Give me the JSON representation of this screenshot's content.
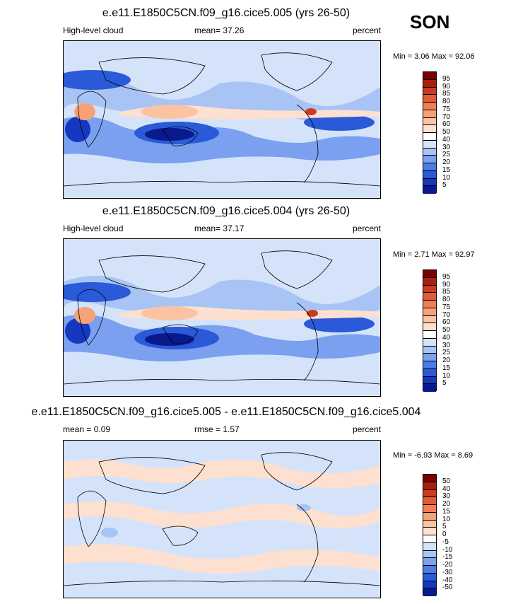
{
  "season": "SON",
  "colors": {
    "levels11": [
      "#0a1a8c",
      "#1538c0",
      "#2a5ad8",
      "#4a7de6",
      "#7aa0ef",
      "#a8c4f4",
      "#d4e3fa",
      "#ffffff",
      "#fde0cf",
      "#fcc3a3",
      "#f7a178",
      "#f07f55",
      "#e35b35",
      "#cc3a1f",
      "#a81e10",
      "#7a0000"
    ]
  },
  "chart_data": [
    {
      "type": "heatmap",
      "title": "e.e11.E1850C5CN.f09_g16.cice5.005 (yrs 26-50)",
      "left_label": "High-level cloud",
      "center_label": "mean=  37.26",
      "units": "percent",
      "min_max": "Min =  3.06 Max =  92.06",
      "levels": [
        "95",
        "90",
        "85",
        "80",
        "75",
        "70",
        "60",
        "50",
        "40",
        "30",
        "25",
        "20",
        "15",
        "10",
        "5"
      ]
    },
    {
      "type": "heatmap",
      "title": "e.e11.E1850C5CN.f09_g16.cice5.004 (yrs 26-50)",
      "left_label": "High-level cloud",
      "center_label": "mean=  37.17",
      "units": "percent",
      "min_max": "Min =  2.71 Max =  92.97",
      "levels": [
        "95",
        "90",
        "85",
        "80",
        "75",
        "70",
        "60",
        "50",
        "40",
        "30",
        "25",
        "20",
        "15",
        "10",
        "5"
      ]
    },
    {
      "type": "heatmap",
      "title": "e.e11.E1850C5CN.f09_g16.cice5.005 - e.e11.E1850C5CN.f09_g16.cice5.004",
      "left_label": "mean =  0.09",
      "center_label": "rmse =   1.57",
      "units": "percent",
      "min_max": "Min =  -6.93 Max =  8.69",
      "levels": [
        "50",
        "40",
        "30",
        "20",
        "15",
        "10",
        "5",
        "0",
        "-5",
        "-10",
        "-15",
        "-20",
        "-30",
        "-40",
        "-50"
      ]
    }
  ]
}
